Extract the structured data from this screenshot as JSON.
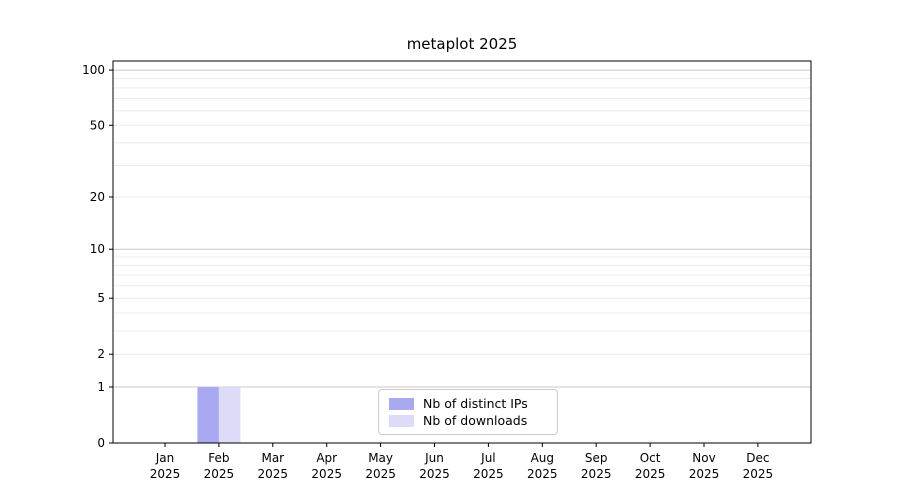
{
  "chart_data": {
    "type": "bar",
    "title": "metaplot 2025",
    "x_categories": [
      "Jan",
      "Feb",
      "Mar",
      "Apr",
      "May",
      "Jun",
      "Jul",
      "Aug",
      "Sep",
      "Oct",
      "Nov",
      "Dec"
    ],
    "x_year": "2025",
    "series": [
      {
        "name": "Nb of distinct IPs",
        "color": "#a9a9f2",
        "values": [
          0,
          1,
          0,
          0,
          0,
          0,
          0,
          0,
          0,
          0,
          0,
          0
        ]
      },
      {
        "name": "Nb of downloads",
        "color": "#dcdcf8",
        "values": [
          0,
          1,
          0,
          0,
          0,
          0,
          0,
          0,
          0,
          0,
          0,
          0
        ]
      }
    ],
    "y_scale": "log1p",
    "ylim": [
      0,
      112
    ],
    "y_ticks": [
      0,
      1,
      2,
      5,
      10,
      20,
      50,
      100
    ],
    "y_grid_major": [
      1,
      10,
      100
    ],
    "y_grid_minor": [
      2,
      3,
      4,
      5,
      6,
      7,
      8,
      9,
      20,
      30,
      40,
      50,
      60,
      70,
      80,
      90
    ],
    "legend": {
      "position": "lower center"
    },
    "grid": true,
    "colors": {
      "grid_major": "#c9c9c9",
      "grid_minor": "#ececec",
      "spine": "#000000",
      "text": "#000000",
      "background": "#ffffff"
    }
  }
}
